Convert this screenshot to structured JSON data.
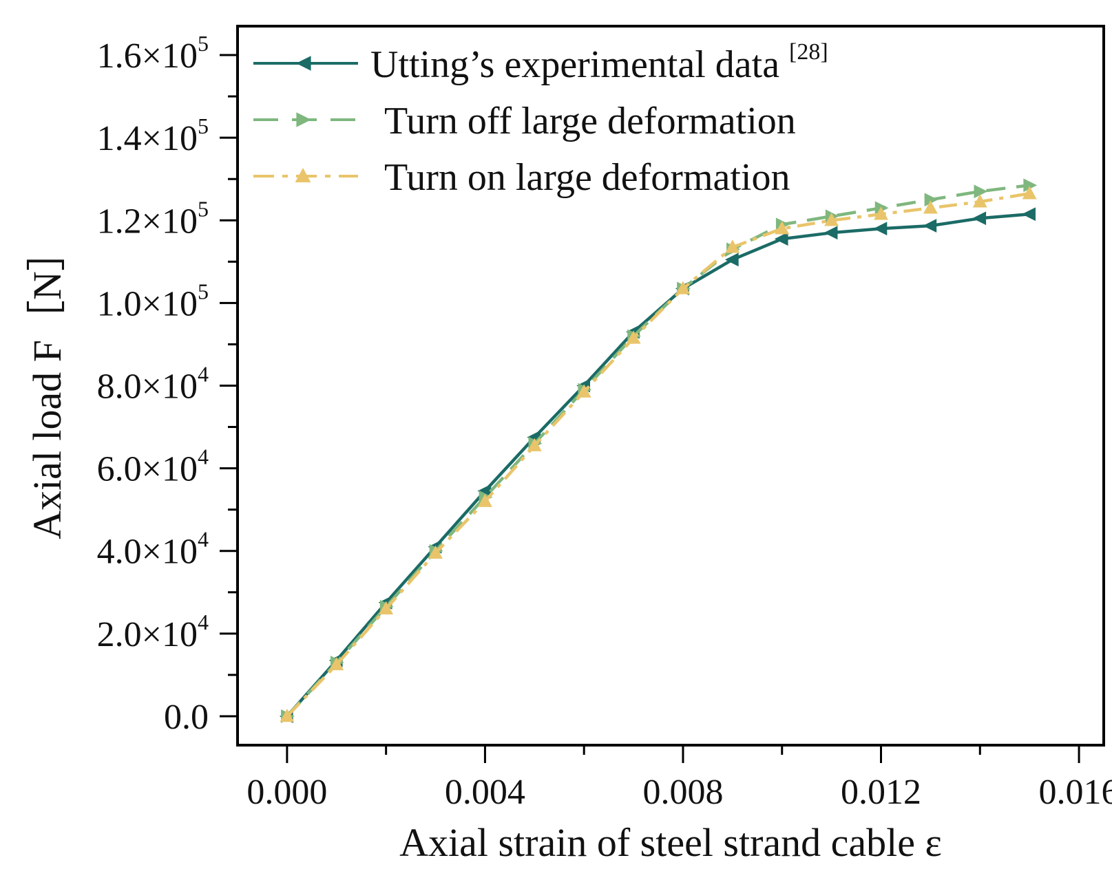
{
  "chart_data": {
    "type": "line",
    "xlabel": "Axial strain of steel strand cable  ε",
    "ylabel": "Axial load  F［N］",
    "xlim": [
      -0.001,
      0.0165
    ],
    "ylim": [
      -7000,
      167000
    ],
    "x_ticks": [
      {
        "value": 0.0,
        "label": "0.000"
      },
      {
        "value": 0.004,
        "label": "0.004"
      },
      {
        "value": 0.008,
        "label": "0.008"
      },
      {
        "value": 0.012,
        "label": "0.012"
      },
      {
        "value": 0.016,
        "label": "0.016"
      }
    ],
    "y_ticks": [
      {
        "value": 0,
        "label": "0.0",
        "exp": ""
      },
      {
        "value": 20000,
        "label": "2.0×10",
        "exp": "4"
      },
      {
        "value": 40000,
        "label": "4.0×10",
        "exp": "4"
      },
      {
        "value": 60000,
        "label": "6.0×10",
        "exp": "4"
      },
      {
        "value": 80000,
        "label": "8.0×10",
        "exp": "4"
      },
      {
        "value": 100000,
        "label": "1.0×10",
        "exp": "5"
      },
      {
        "value": 120000,
        "label": "1.2×10",
        "exp": "5"
      },
      {
        "value": 140000,
        "label": "1.4×10",
        "exp": "5"
      },
      {
        "value": 160000,
        "label": "1.6×10",
        "exp": "5"
      }
    ],
    "x": [
      0,
      0.001,
      0.002,
      0.003,
      0.004,
      0.005,
      0.006,
      0.007,
      0.008,
      0.009,
      0.01,
      0.011,
      0.012,
      0.013,
      0.014,
      0.015
    ],
    "series": [
      {
        "name": "Utting’s experimental data",
        "ref": "[28]",
        "color": "#1b6b66",
        "dash": "",
        "marker": "triangle-left",
        "values": [
          0,
          13500,
          27500,
          41000,
          54500,
          67500,
          80000,
          93000,
          103500,
          110500,
          115500,
          117000,
          118000,
          118700,
          120500,
          121500
        ]
      },
      {
        "name": "Turn off large deformation",
        "ref": "",
        "color": "#7fb77e",
        "dash": "28,16",
        "marker": "triangle-right",
        "values": [
          0,
          13000,
          26500,
          40000,
          53000,
          66000,
          79000,
          92000,
          103500,
          113000,
          119000,
          121000,
          123000,
          125000,
          127000,
          128500
        ]
      },
      {
        "name": "Turn on large deformation",
        "ref": "",
        "color": "#e9c46a",
        "dash": "26,10,6,10",
        "marker": "triangle-up",
        "values": [
          0,
          12500,
          26000,
          39500,
          52000,
          65500,
          78500,
          91500,
          103500,
          113500,
          118000,
          120000,
          121500,
          123000,
          124500,
          126500
        ]
      }
    ]
  }
}
